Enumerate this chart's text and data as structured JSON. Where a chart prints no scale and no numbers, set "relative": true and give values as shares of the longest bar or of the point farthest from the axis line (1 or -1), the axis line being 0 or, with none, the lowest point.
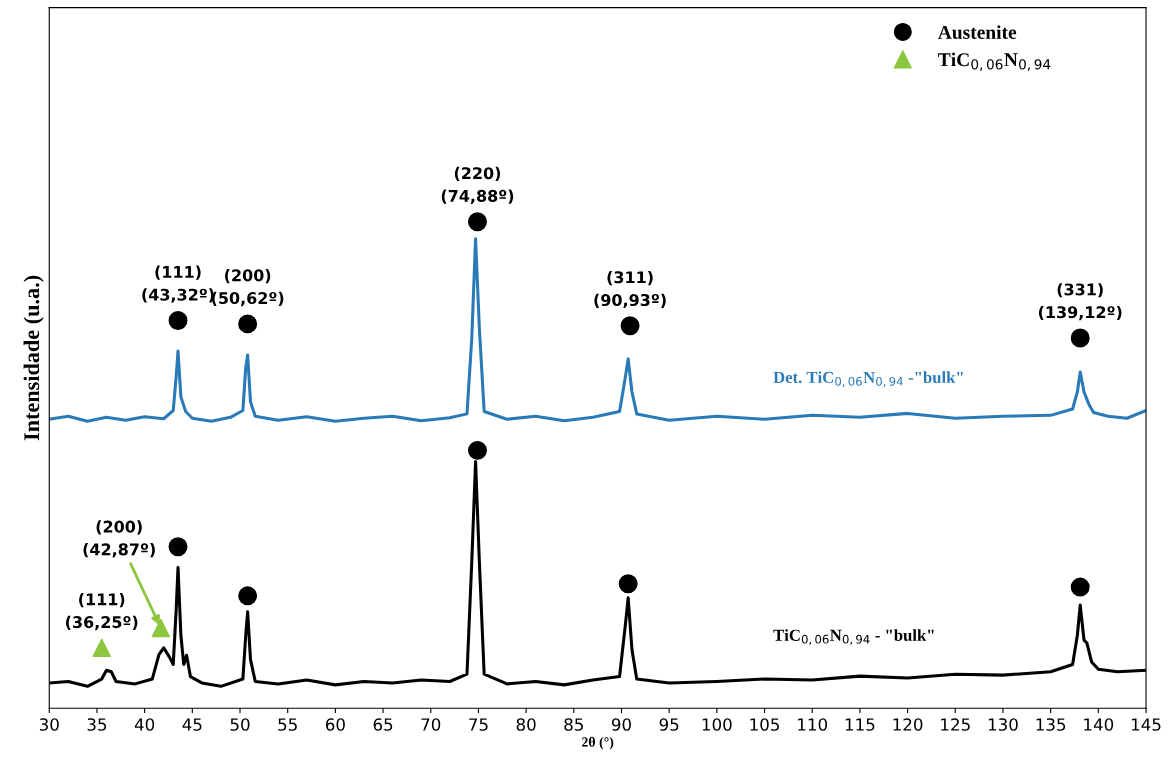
{
  "chart_data": {
    "type": "line",
    "relative": true,
    "xlabel": "2θ (°)",
    "ylabel": "Intensidade (u.a.)",
    "xlim": [
      30,
      145
    ],
    "xticks": [
      30,
      35,
      40,
      45,
      50,
      55,
      60,
      65,
      70,
      75,
      80,
      85,
      90,
      95,
      100,
      105,
      110,
      115,
      120,
      125,
      130,
      135,
      140,
      145
    ],
    "grid": false,
    "legend": "top right",
    "series": [
      {
        "name": "Det. TiC$_{0,06}$N$_{0,94}$ -\"bulk\"",
        "color": "#2a7ab8",
        "marker": "none",
        "x": [
          30,
          32,
          34,
          36,
          38,
          40,
          42,
          43,
          43.3,
          43.5,
          43.8,
          44.3,
          45,
          47,
          49,
          50.3,
          50.6,
          50.8,
          51.1,
          51.6,
          54,
          57,
          60,
          63,
          66,
          69,
          72,
          73.8,
          74.3,
          74.7,
          75.1,
          75.6,
          78,
          81,
          84,
          87,
          89.8,
          90.4,
          90.7,
          91.1,
          91.6,
          95,
          100,
          105,
          110,
          115,
          120,
          125,
          130,
          135,
          137.3,
          137.8,
          138.1,
          138.5,
          139.0,
          139.5,
          141,
          143,
          145
        ],
        "values": [
          0.594,
          0.6,
          0.59,
          0.598,
          0.592,
          0.599,
          0.595,
          0.612,
          0.68,
          0.734,
          0.64,
          0.61,
          0.596,
          0.59,
          0.598,
          0.612,
          0.7,
          0.726,
          0.63,
          0.6,
          0.592,
          0.599,
          0.59,
          0.596,
          0.6,
          0.591,
          0.597,
          0.605,
          0.76,
          0.965,
          0.78,
          0.61,
          0.594,
          0.6,
          0.591,
          0.598,
          0.61,
          0.68,
          0.718,
          0.65,
          0.605,
          0.592,
          0.6,
          0.594,
          0.602,
          0.598,
          0.606,
          0.596,
          0.6,
          0.602,
          0.615,
          0.65,
          0.691,
          0.65,
          0.625,
          0.608,
          0.6,
          0.596,
          0.612
        ]
      },
      {
        "name": "TiC$_{0,06}$N$_{0,94}$ - \"bulk\"",
        "color": "#000000",
        "marker": "none",
        "x": [
          30,
          32,
          34,
          35.5,
          36.0,
          36.5,
          37,
          39,
          40.8,
          41.5,
          42.0,
          42.6,
          43.0,
          43.3,
          43.5,
          43.8,
          44.1,
          44.4,
          44.8,
          46,
          48,
          50.3,
          50.6,
          50.8,
          51.1,
          51.6,
          54,
          57,
          60,
          63,
          66,
          69,
          72,
          73.8,
          74.3,
          74.7,
          75.1,
          75.6,
          78,
          81,
          84,
          87,
          89.8,
          90.4,
          90.7,
          91.1,
          91.6,
          95,
          100,
          105,
          110,
          115,
          120,
          125,
          130,
          135,
          137.3,
          137.8,
          138.1,
          138.5,
          138.8,
          139.3,
          140,
          142,
          145
        ],
        "values": [
          0.052,
          0.055,
          0.045,
          0.06,
          0.078,
          0.075,
          0.055,
          0.05,
          0.06,
          0.11,
          0.124,
          0.105,
          0.09,
          0.2,
          0.289,
          0.15,
          0.09,
          0.109,
          0.065,
          0.052,
          0.045,
          0.06,
          0.15,
          0.198,
          0.1,
          0.055,
          0.05,
          0.058,
          0.048,
          0.055,
          0.052,
          0.058,
          0.055,
          0.07,
          0.3,
          0.507,
          0.3,
          0.07,
          0.05,
          0.055,
          0.048,
          0.058,
          0.065,
          0.17,
          0.227,
          0.12,
          0.06,
          0.052,
          0.055,
          0.06,
          0.058,
          0.066,
          0.062,
          0.07,
          0.068,
          0.075,
          0.09,
          0.15,
          0.212,
          0.14,
          0.134,
          0.095,
          0.08,
          0.075,
          0.078
        ]
      },
      {
        "name": "Austenite",
        "type": "scatter",
        "color": "#000000",
        "marker": "circle",
        "x": [
          43.5,
          50.8,
          74.9,
          90.9,
          138.1,
          43.5,
          50.8,
          74.9,
          90.7,
          138.1
        ],
        "values": [
          0.797,
          0.79,
          1.0,
          0.786,
          0.761,
          0.332,
          0.231,
          0.53,
          0.256,
          0.249
        ]
      },
      {
        "name": "TiC$_{0,06}$N$_{0,94}$",
        "type": "scatter",
        "color": "#8cc63f",
        "marker": "triangle",
        "x": [
          35.5,
          41.7
        ],
        "values": [
          0.124,
          0.165
        ]
      }
    ],
    "annotations": [
      {
        "text": "(111)\n(43,32º)",
        "x": 43.5,
        "y": 0.797
      },
      {
        "text": "(200)\n(50,62º)",
        "x": 50.8,
        "y": 0.79
      },
      {
        "text": "(220)\n(74,88º)",
        "x": 74.9,
        "y": 1.0
      },
      {
        "text": "(311)\n(90,93º)",
        "x": 90.9,
        "y": 0.786
      },
      {
        "text": "(331)\n(139,12º)",
        "x": 138.1,
        "y": 0.761
      },
      {
        "text": "(111)\n(36,25º)",
        "x": 35.5,
        "y": 0.124
      },
      {
        "text": "(200)\n(42,87º)",
        "x": 41.7,
        "y": 0.165
      }
    ]
  }
}
